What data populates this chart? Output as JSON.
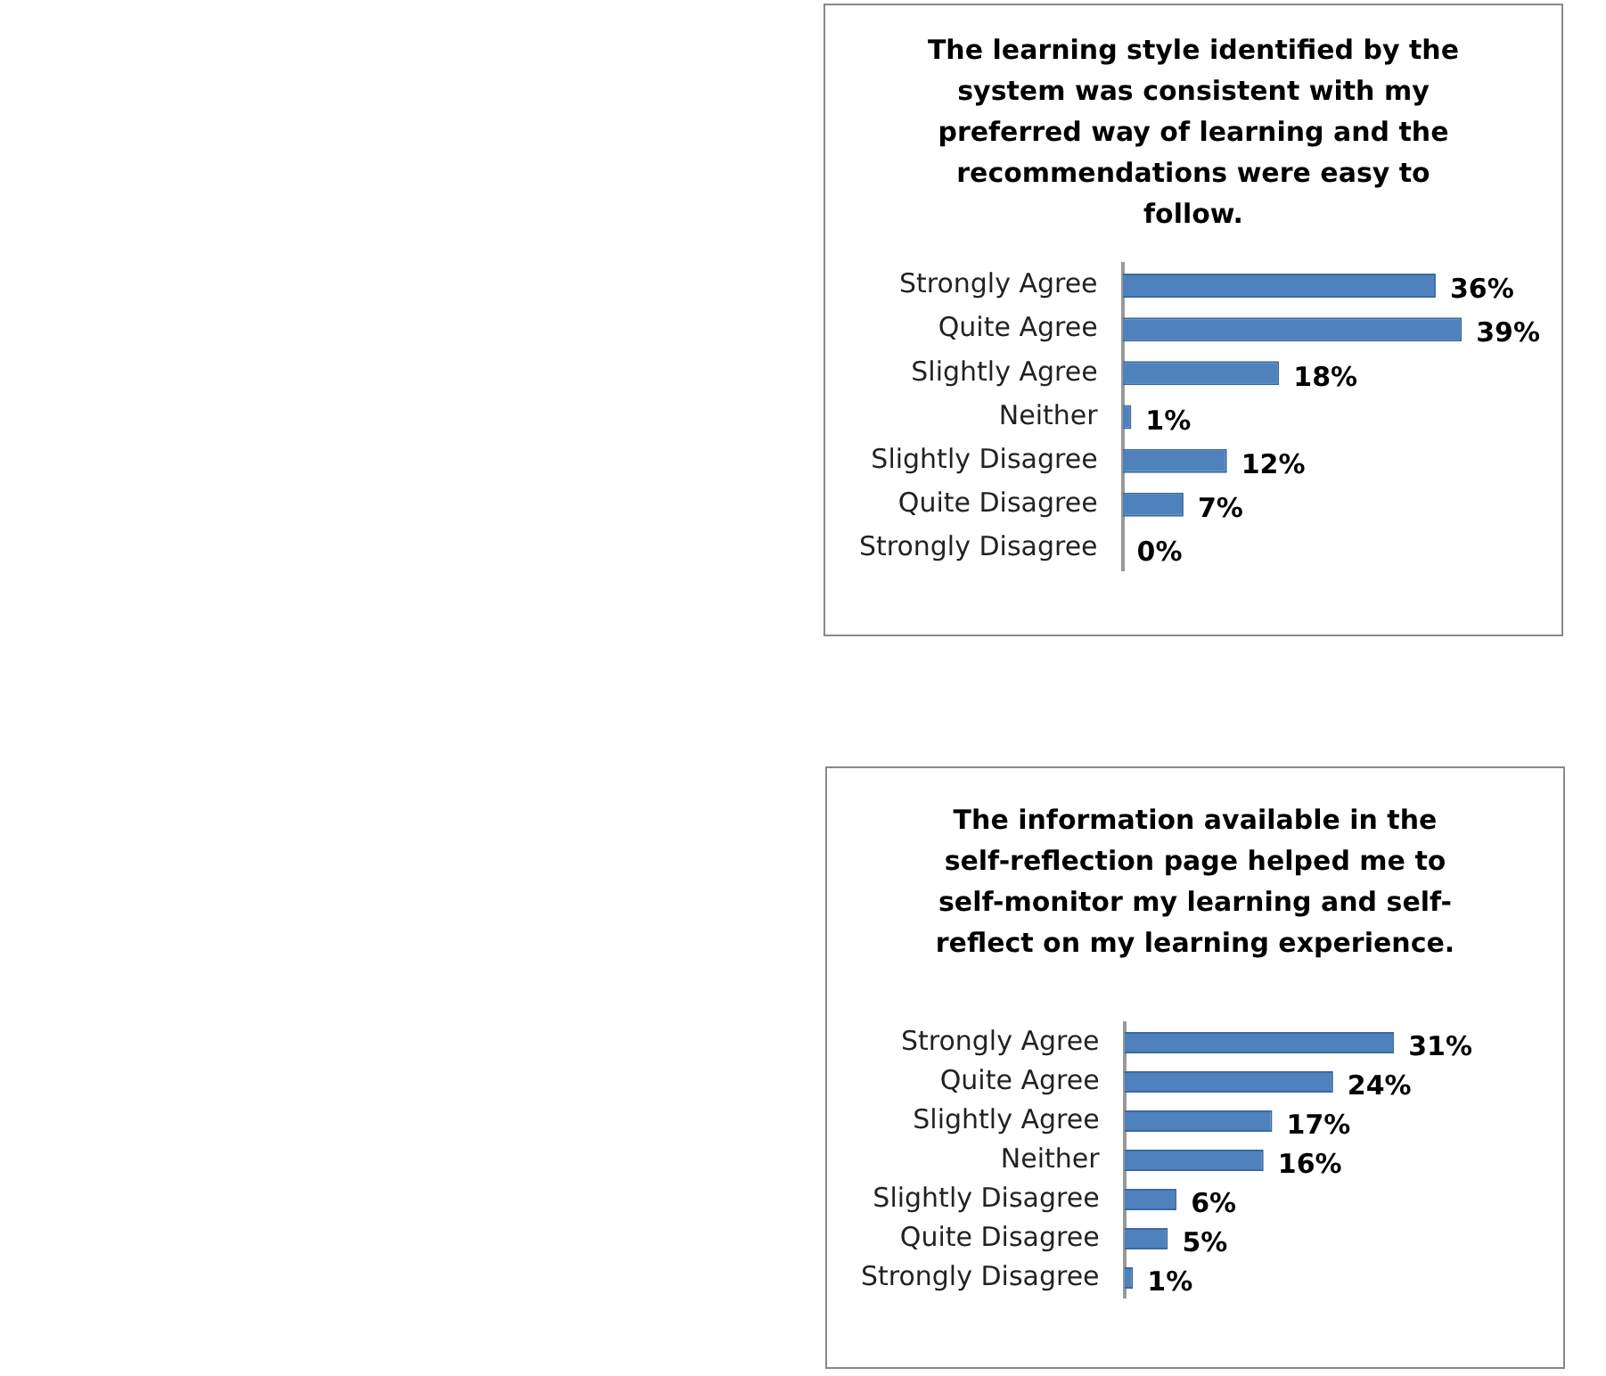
{
  "chart_data": [
    {
      "type": "bar",
      "orientation": "horizontal",
      "title": "The learning style identified by the system was consistent with my preferred way of learning and the recommendations were easy to follow.",
      "categories": [
        "Strongly Agree",
        "Quite Agree",
        "Slightly Agree",
        "Neither",
        "Slightly Disagree",
        "Quite Disagree",
        "Strongly Disagree"
      ],
      "values": [
        36,
        39,
        18,
        1,
        12,
        7,
        0
      ],
      "value_labels": [
        "36%",
        "39%",
        "18%",
        "1%",
        "12%",
        "7%",
        "0%"
      ],
      "color": "#4f81bd",
      "grid": false,
      "legend": false,
      "tick_labels": "y"
    },
    {
      "type": "bar",
      "orientation": "horizontal",
      "title": "The information available in the self-reflection page helped me to self-monitor my learning and self-reflect on my learning experience.",
      "categories": [
        "Strongly Agree",
        "Quite Agree",
        "Slightly Agree",
        "Neither",
        "Slightly Disagree",
        "Quite Disagree",
        "Strongly Disagree"
      ],
      "values": [
        31,
        24,
        17,
        16,
        6,
        5,
        1
      ],
      "value_labels": [
        "31%",
        "24%",
        "17%",
        "16%",
        "6%",
        "5%",
        "1%"
      ],
      "color": "#4f81bd",
      "grid": false,
      "legend": false,
      "tick_labels": "y"
    }
  ]
}
